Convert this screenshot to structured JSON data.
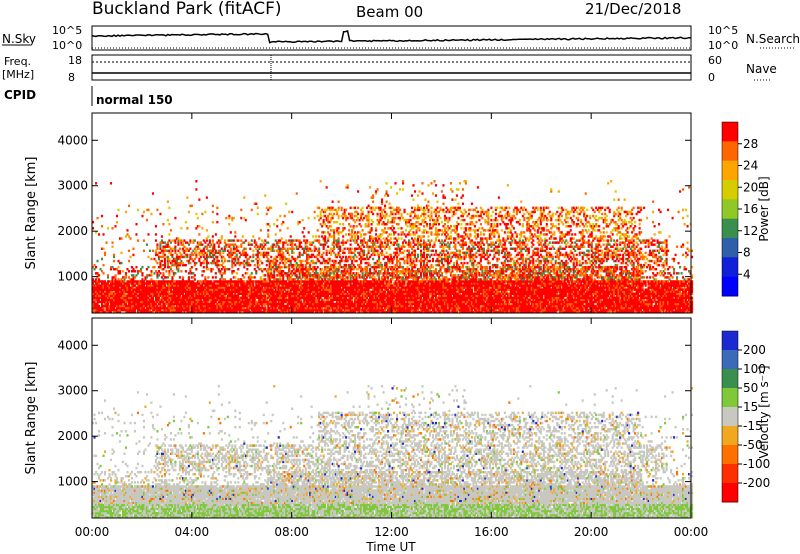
{
  "header": {
    "station": "Buckland Park (fitACF)",
    "beam": "Beam 00",
    "date": "21/Dec/2018"
  },
  "top_panels": {
    "nsky_label": "N.Sky",
    "nsky_ticks": [
      "10^5",
      "10^0"
    ],
    "nsearch_label": "N.Search",
    "nsearch_ticks": [
      "10^5",
      "10^0"
    ],
    "freq_label_line1": "Freq.",
    "freq_label_line2": "[MHz]",
    "freq_ticks": [
      "18",
      "8"
    ],
    "nave_label": "Nave",
    "nave_ticks": [
      "60",
      "0"
    ],
    "cpid_label": "CPID",
    "cpid_value": "normal 150"
  },
  "chart_data": [
    {
      "type": "heatmap",
      "name": "power",
      "ylabel": "Slant Range [km]",
      "yticks": [
        1000,
        2000,
        3000,
        4000
      ],
      "ylim": [
        200,
        4600
      ],
      "xticks": [
        "00:00",
        "04:00",
        "08:00",
        "12:00",
        "16:00",
        "20:00",
        "00:00"
      ],
      "xlim": [
        0,
        24
      ],
      "colorbar_label": "Power [dB]",
      "colorbar_ticks": [
        "28",
        "24",
        "20",
        "16",
        "12",
        "8",
        "4"
      ],
      "colorbar_colors": [
        "#ff0000",
        "#ff6600",
        "#ffa500",
        "#d6cd00",
        "#90c826",
        "#3b8f4e",
        "#2e5fa8",
        "#1020d8",
        "#0000ff"
      ]
    },
    {
      "type": "heatmap",
      "name": "velocity",
      "ylabel": "Slant Range [km]",
      "yticks": [
        1000,
        2000,
        3000,
        4000
      ],
      "ylim": [
        200,
        4600
      ],
      "xticks": [
        "00:00",
        "04:00",
        "08:00",
        "12:00",
        "16:00",
        "20:00",
        "00:00"
      ],
      "xlim": [
        0,
        24
      ],
      "xlabel": "Time UT",
      "colorbar_label": "Velocity [m s⁻¹]",
      "colorbar_ticks": [
        "200",
        "100",
        "50",
        "15",
        "-15",
        "-50",
        "-100",
        "-200"
      ],
      "colorbar_colors": [
        "#1a2ad0",
        "#3a6ab8",
        "#3b8f4e",
        "#7ec83a",
        "#c8c8c0",
        "#f0a820",
        "#ff7000",
        "#ff3000",
        "#ff0000"
      ],
      "ground_scatter_color": "#c8c8c0"
    }
  ]
}
